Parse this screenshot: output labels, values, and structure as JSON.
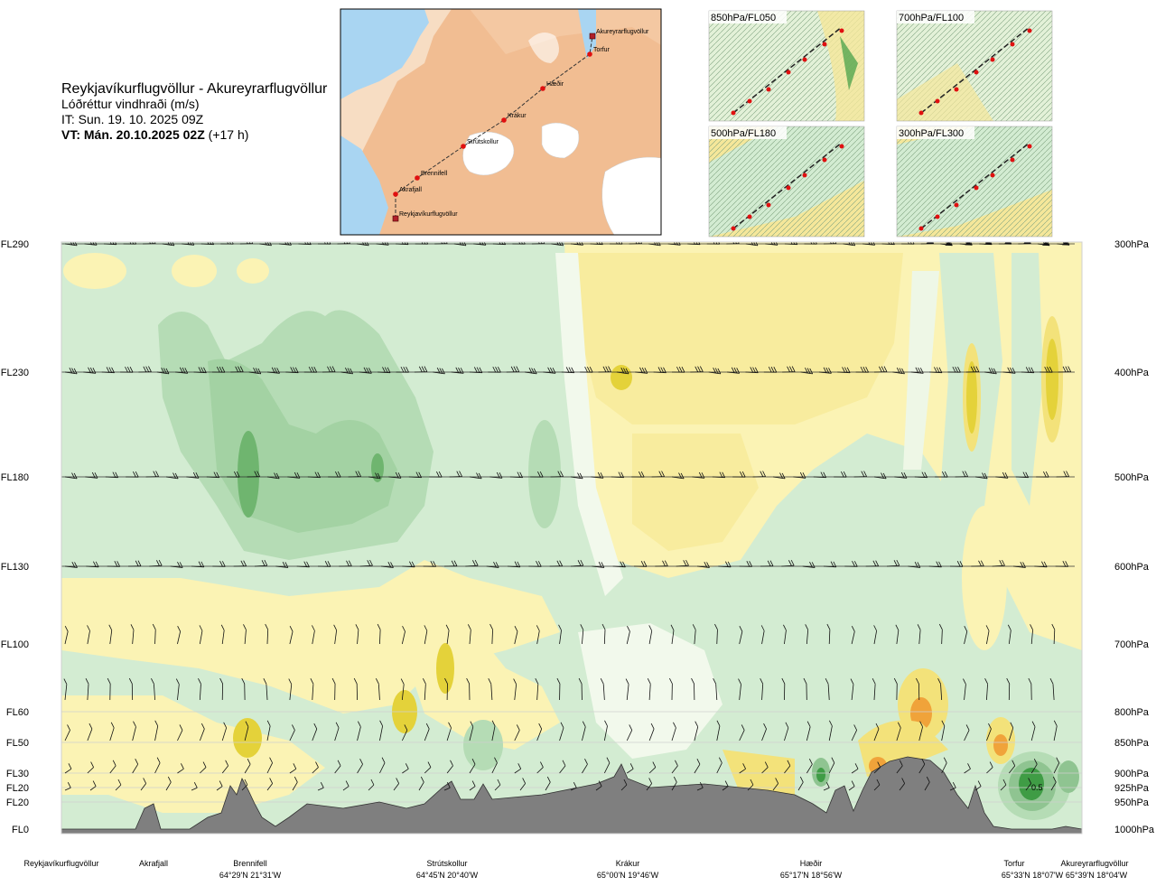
{
  "header": {
    "route": "Reykjavíkurflugvöllur - Akureyrarflugvöllur",
    "variable": "Lóðréttur vindhraði (m/s)",
    "issue_time": "IT: Sun. 19. 10. 2025 09Z",
    "valid_time": "VT: Mán. 20.10.2025 02Z",
    "lead": "(+17 h)"
  },
  "map": {
    "points": [
      {
        "name": "Akureyrarflugvöllur",
        "kind": "airport"
      },
      {
        "name": "Torfur",
        "kind": "point"
      },
      {
        "name": "Hæðir",
        "kind": "point"
      },
      {
        "name": "Krákur",
        "kind": "point"
      },
      {
        "name": "Strútskollur",
        "kind": "point"
      },
      {
        "name": "Brennifell",
        "kind": "point"
      },
      {
        "name": "Akrafjall",
        "kind": "point"
      },
      {
        "name": "Reykjavíkurflugvöllur",
        "kind": "airport"
      }
    ]
  },
  "insets": [
    {
      "label": "850hPa/FL050"
    },
    {
      "label": "700hPa/FL100"
    },
    {
      "label": "500hPa/FL180"
    },
    {
      "label": "300hPa/FL300"
    }
  ],
  "colors": {
    "green_light": "#d3ecd2",
    "green_mid": "#b5dcb5",
    "green_dark": "#8fc491",
    "green_core": "#3f9c45",
    "yellow_light": "#fbf3b4",
    "yellow_mid": "#f3e27a",
    "yellow_dark": "#e4d23a",
    "orange": "#f0a33a",
    "terrain": "#7f7f7f"
  },
  "chart_data": {
    "type": "heatmap",
    "title": "Reykjavíkurflugvöllur - Akureyrarflugvöllur",
    "subtitle": "Lóðréttur vindhraði (m/s)",
    "y_left_ticks": [
      "FL290",
      "FL230",
      "FL180",
      "FL130",
      "FL100",
      "FL60",
      "FL50",
      "FL30",
      "FL20",
      "FL20",
      "FL0"
    ],
    "y_right_ticks": [
      "300hPa",
      "400hPa",
      "500hPa",
      "600hPa",
      "700hPa",
      "800hPa",
      "850hPa",
      "900hPa",
      "925hPa",
      "950hPa",
      "1000hPa"
    ],
    "x_locations": [
      {
        "name": "Reykjavíkurflugvöllur",
        "coord": ""
      },
      {
        "name": "Akrafjall",
        "coord": ""
      },
      {
        "name": "Brennifell",
        "coord": "64°29'N 21°31'W"
      },
      {
        "name": "Strútskollur",
        "coord": "64°45'N 20°40'W"
      },
      {
        "name": "Krákur",
        "coord": "65°00'N 19°46'W"
      },
      {
        "name": "Hæðir",
        "coord": "65°17'N 18°56'W"
      },
      {
        "name": "Torfur",
        "coord": "65°33'N 18°07'W"
      },
      {
        "name": "Akureyrarflugvöllur",
        "coord": "65°39'N 18°04'W"
      }
    ],
    "annotations": [
      "0.5"
    ],
    "legend": "none",
    "grid": true
  }
}
